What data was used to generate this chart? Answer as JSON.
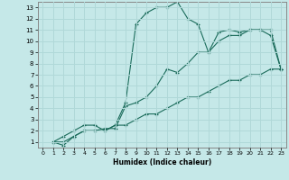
{
  "xlabel": "Humidex (Indice chaleur)",
  "xlim": [
    -0.5,
    23.5
  ],
  "ylim": [
    0.5,
    13.5
  ],
  "xticks": [
    0,
    1,
    2,
    3,
    4,
    5,
    6,
    7,
    8,
    9,
    10,
    11,
    12,
    13,
    14,
    15,
    16,
    17,
    18,
    19,
    20,
    21,
    22,
    23
  ],
  "yticks": [
    1,
    2,
    3,
    4,
    5,
    6,
    7,
    8,
    9,
    10,
    11,
    12,
    13
  ],
  "bg_color": "#c5e8e8",
  "line_color": "#1a6b5a",
  "grid_color": "#b0d8d8",
  "line1_x": [
    1,
    2,
    3,
    4,
    5,
    6,
    7,
    8,
    9,
    10,
    11,
    12,
    13,
    14,
    15,
    16,
    17,
    18,
    19,
    20,
    21,
    22,
    23
  ],
  "line1_y": [
    1,
    1.5,
    2,
    2.5,
    2.5,
    2,
    2.5,
    4.5,
    11.5,
    12.5,
    13,
    13,
    13.5,
    12,
    11.5,
    9,
    10.8,
    11,
    10.8,
    11,
    11,
    10.5,
    7.5
  ],
  "line2_x": [
    1,
    2,
    3,
    4,
    5,
    6,
    7,
    8,
    9,
    10,
    11,
    12,
    13,
    14,
    15,
    16,
    17,
    18,
    19,
    20,
    21,
    22,
    23
  ],
  "line2_y": [
    1,
    0.7,
    1.5,
    2,
    2,
    2.2,
    2.2,
    4.2,
    4.5,
    5,
    6,
    7.5,
    7.2,
    8,
    9,
    9,
    10,
    10.5,
    10.5,
    11,
    11,
    11,
    7.5
  ],
  "line3_x": [
    1,
    2,
    3,
    4,
    5,
    6,
    7,
    8,
    9,
    10,
    11,
    12,
    13,
    14,
    15,
    16,
    17,
    18,
    19,
    20,
    21,
    22,
    23
  ],
  "line3_y": [
    1,
    1,
    1.5,
    2,
    2,
    2,
    2.5,
    2.5,
    3,
    3.5,
    3.5,
    4,
    4.5,
    5,
    5,
    5.5,
    6,
    6.5,
    6.5,
    7,
    7,
    7.5,
    7.5
  ]
}
